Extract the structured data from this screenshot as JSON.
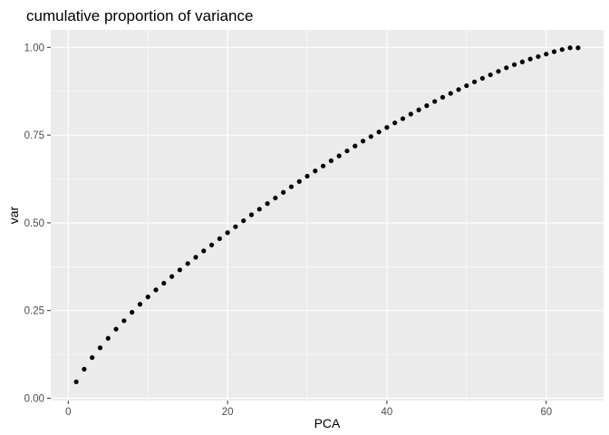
{
  "chart_data": {
    "type": "scatter",
    "title": "cumulative proportion of variance",
    "xlabel": "PCA",
    "ylabel": "var",
    "xlim": [
      -2.2,
      67.2
    ],
    "ylim": [
      -0.0065,
      1.05
    ],
    "x_ticks": [
      0,
      20,
      40,
      60
    ],
    "x_tick_labels": [
      "0",
      "20",
      "40",
      "60"
    ],
    "y_ticks": [
      0.0,
      0.25,
      0.5,
      0.75,
      1.0
    ],
    "y_tick_labels": [
      "0.00",
      "0.25",
      "0.50",
      "0.75",
      "1.00"
    ],
    "grid": true,
    "panel_background": "#ebebeb",
    "grid_color": "#ffffff",
    "point_color": "#000000",
    "x": [
      1,
      2,
      3,
      4,
      5,
      6,
      7,
      8,
      9,
      10,
      11,
      12,
      13,
      14,
      15,
      16,
      17,
      18,
      19,
      20,
      21,
      22,
      23,
      24,
      25,
      26,
      27,
      28,
      29,
      30,
      31,
      32,
      33,
      34,
      35,
      36,
      37,
      38,
      39,
      40,
      41,
      42,
      43,
      44,
      45,
      46,
      47,
      48,
      49,
      50,
      51,
      52,
      53,
      54,
      55,
      56,
      57,
      58,
      59,
      60,
      61,
      62,
      63,
      64
    ],
    "y": [
      0.047,
      0.083,
      0.116,
      0.144,
      0.171,
      0.197,
      0.221,
      0.245,
      0.268,
      0.289,
      0.309,
      0.328,
      0.347,
      0.366,
      0.384,
      0.402,
      0.42,
      0.437,
      0.455,
      0.472,
      0.489,
      0.506,
      0.523,
      0.539,
      0.555,
      0.571,
      0.587,
      0.603,
      0.618,
      0.633,
      0.648,
      0.662,
      0.677,
      0.691,
      0.705,
      0.719,
      0.733,
      0.746,
      0.759,
      0.772,
      0.785,
      0.797,
      0.81,
      0.822,
      0.834,
      0.846,
      0.858,
      0.869,
      0.88,
      0.891,
      0.902,
      0.912,
      0.922,
      0.932,
      0.942,
      0.951,
      0.959,
      0.967,
      0.974,
      0.981,
      0.988,
      0.994,
      0.999,
      0.999
    ]
  }
}
